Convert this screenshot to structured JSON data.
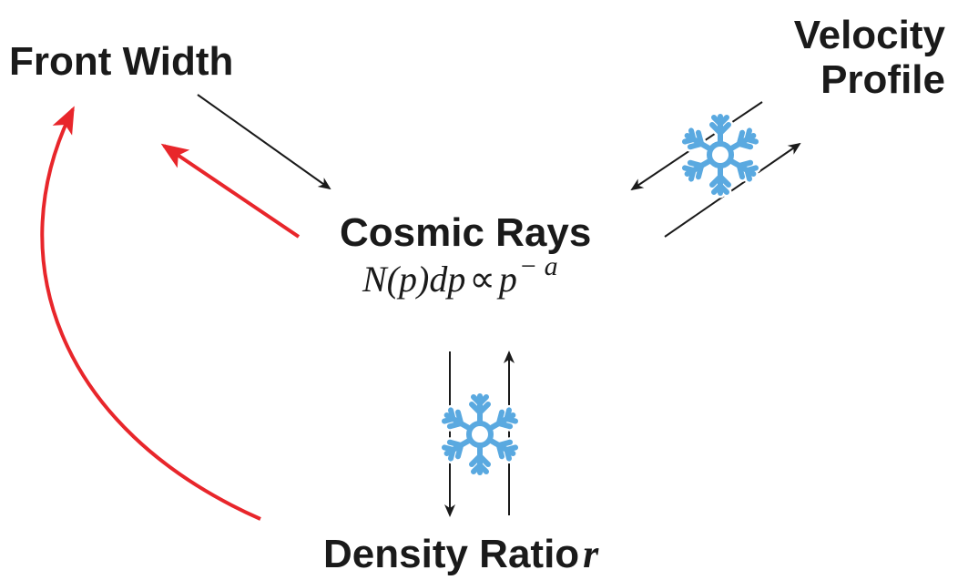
{
  "nodes": {
    "front_width": "Front Width",
    "velocity_profile_line1": "Velocity",
    "velocity_profile_line2": "Profile",
    "cosmic_rays": "Cosmic Rays",
    "density_ratio": "Density Ratio",
    "density_ratio_var": "r"
  },
  "formula": {
    "base": "N(p)dp",
    "relation": "∝",
    "rhs": "p",
    "exponent": "− a"
  },
  "colors": {
    "arrow_black": "#1a1a1a",
    "arrow_red": "#e8262b",
    "snowflake": "#5aa9e0",
    "snowflake_outline": "#ffffff"
  },
  "icons": [
    "snowflake-icon",
    "snowflake-icon"
  ]
}
